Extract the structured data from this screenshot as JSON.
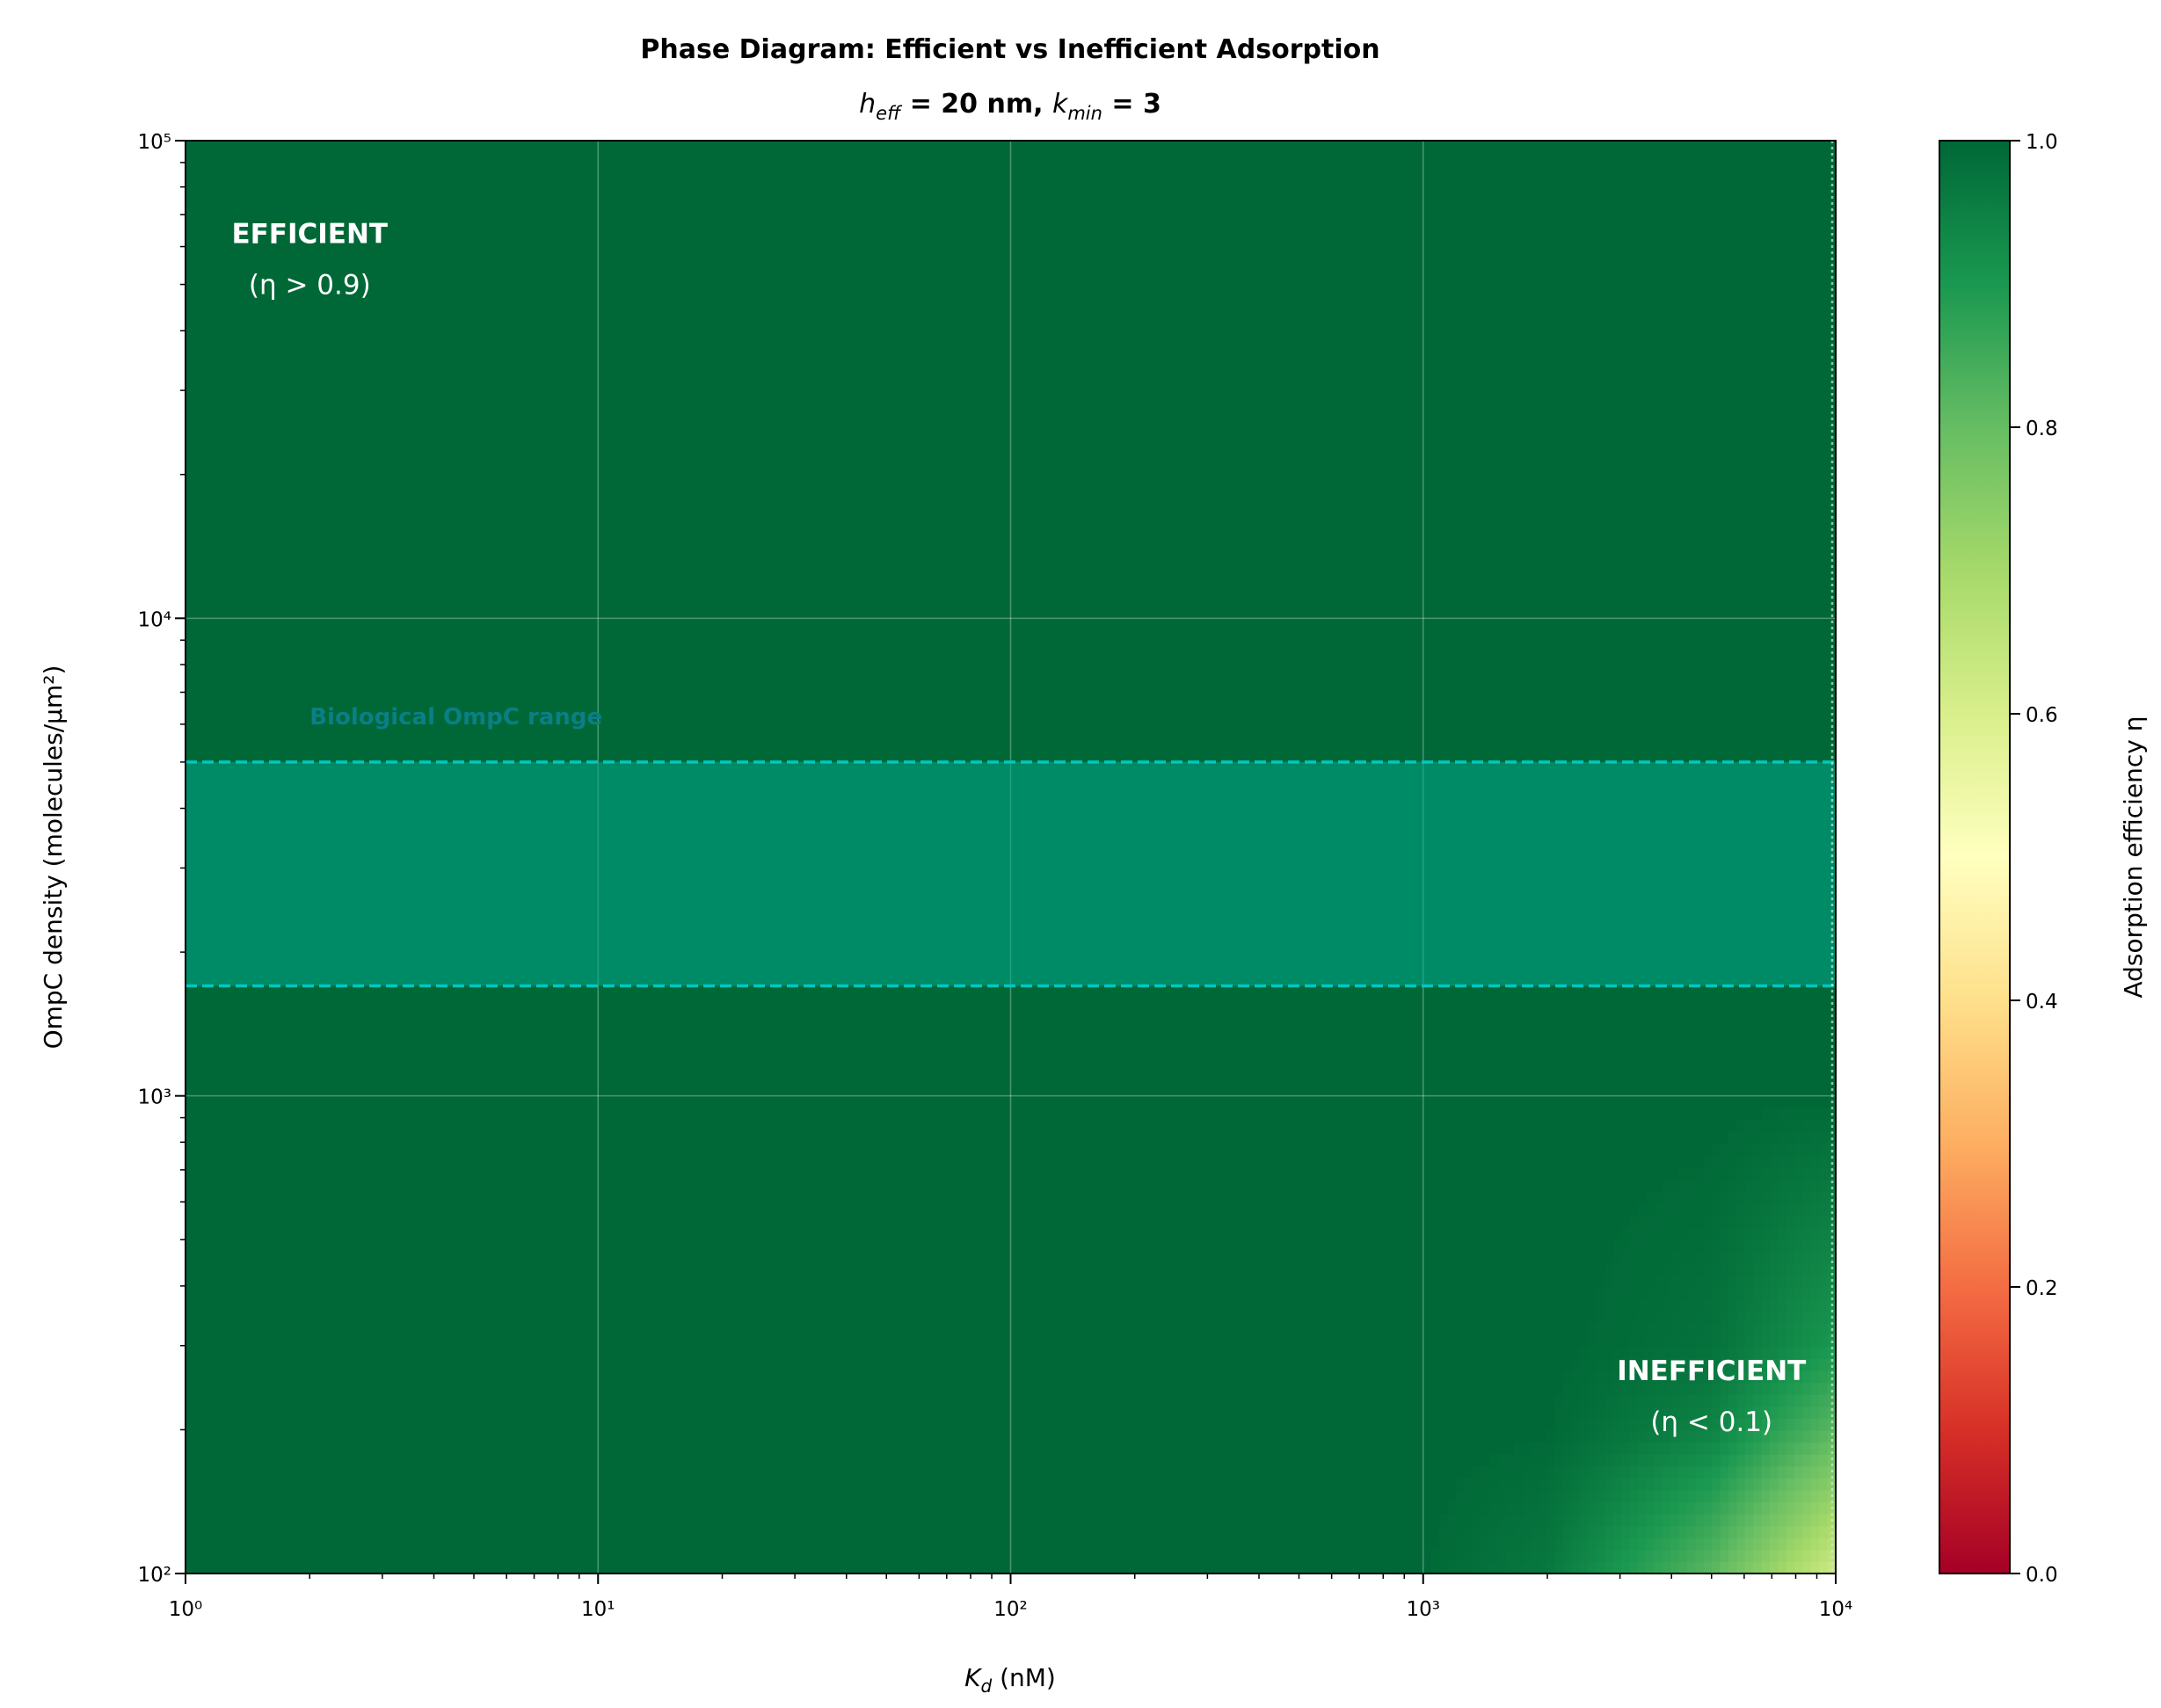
{
  "chart_data": {
    "type": "heatmap",
    "title": "Phase Diagram: Efficient vs Inefficient Adsorption",
    "subtitle": {
      "h": "h",
      "h_sub": "eff",
      "mid": " = 20 nm, ",
      "k": "k",
      "k_sub": "min",
      "end": " = 3"
    },
    "xlabel": {
      "main": "K",
      "sub": "d",
      "rest": " (nM)"
    },
    "ylabel": "OmpC density (molecules/μm²)",
    "xscale": "log",
    "yscale": "log",
    "xlim": [
      1,
      10000
    ],
    "ylim": [
      100,
      100000
    ],
    "grid": true,
    "x_ticks": [
      1,
      10,
      100,
      1000,
      10000
    ],
    "x_tick_labels": [
      "10⁰",
      "10¹",
      "10²",
      "10³",
      "10⁴"
    ],
    "y_ticks": [
      100,
      1000,
      10000,
      100000
    ],
    "y_tick_labels": [
      "10²",
      "10³",
      "10⁴",
      "10⁵"
    ],
    "colormap": "RdYlGn",
    "colorbar": {
      "label": "Adsorption efficiency η",
      "range": [
        0,
        1
      ],
      "ticks": [
        0,
        0.2,
        0.4,
        0.6,
        0.8,
        1.0
      ],
      "tick_labels": [
        "0.0",
        "0.2",
        "0.4",
        "0.6",
        "0.8",
        "1.0"
      ]
    },
    "eta_grid": {
      "kd": [
        1,
        1000,
        2000,
        5000,
        10000
      ],
      "density": [
        100,
        200,
        300,
        1000,
        100000
      ],
      "eta": [
        [
          1.0,
          0.997,
          0.967,
          0.815,
          0.62
        ],
        [
          1.0,
          1.0,
          0.997,
          0.943,
          0.815
        ],
        [
          1.0,
          1.0,
          1.0,
          0.98,
          0.9
        ],
        [
          1.0,
          1.0,
          1.0,
          1.0,
          0.997
        ],
        [
          1.0,
          1.0,
          1.0,
          1.0,
          1.0
        ]
      ]
    },
    "biological_range": {
      "label": "Biological OmpC range",
      "density_min": 1700,
      "density_max": 5000,
      "label_at": [
        2,
        6000
      ],
      "color": "#00c8c0"
    },
    "kd_marker": {
      "kd": 10000,
      "style": "dotted"
    },
    "annotations": [
      {
        "title": "EFFICIENT",
        "detail": "(η > 0.9)",
        "kd": 2,
        "density": 60000
      },
      {
        "title": "INEFFICIENT",
        "detail": "(η < 0.1)",
        "kd": 5000,
        "density": 250
      }
    ]
  }
}
